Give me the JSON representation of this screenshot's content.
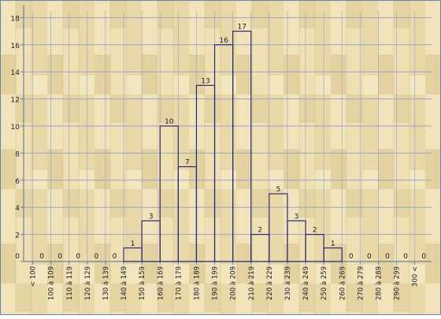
{
  "chart_data": {
    "type": "bar",
    "categories": [
      "< 100",
      "100 à 109",
      "110 à 119",
      "120 à 129",
      "130 à 139",
      "140 à 149",
      "150 à 159",
      "160 à 169",
      "170 à 179",
      "180 à 189",
      "190 à 199",
      "200 à 209",
      "210 à 219",
      "220 à 229",
      "230 à 239",
      "240 à 249",
      "250 à 259",
      "260 à 269",
      "270 à 279",
      "280 à 289",
      "290 à 299",
      "300 <"
    ],
    "values": [
      0,
      0,
      0,
      0,
      0,
      1,
      3,
      10,
      7,
      13,
      16,
      17,
      2,
      5,
      3,
      2,
      1,
      0,
      0,
      0,
      0,
      0
    ],
    "ylim": [
      0,
      18
    ],
    "yticks": [
      0,
      2,
      4,
      6,
      8,
      10,
      12,
      14,
      16,
      18
    ],
    "grid": true,
    "data_labels": true,
    "colors": {
      "frame": "#6f7fa6",
      "bar_stroke": "#2b2b7a",
      "grid": "#9aa3c4",
      "text": "#1a1a2e",
      "wood_light": "#f2e6bf",
      "wood_dark": "#dccb95"
    }
  }
}
